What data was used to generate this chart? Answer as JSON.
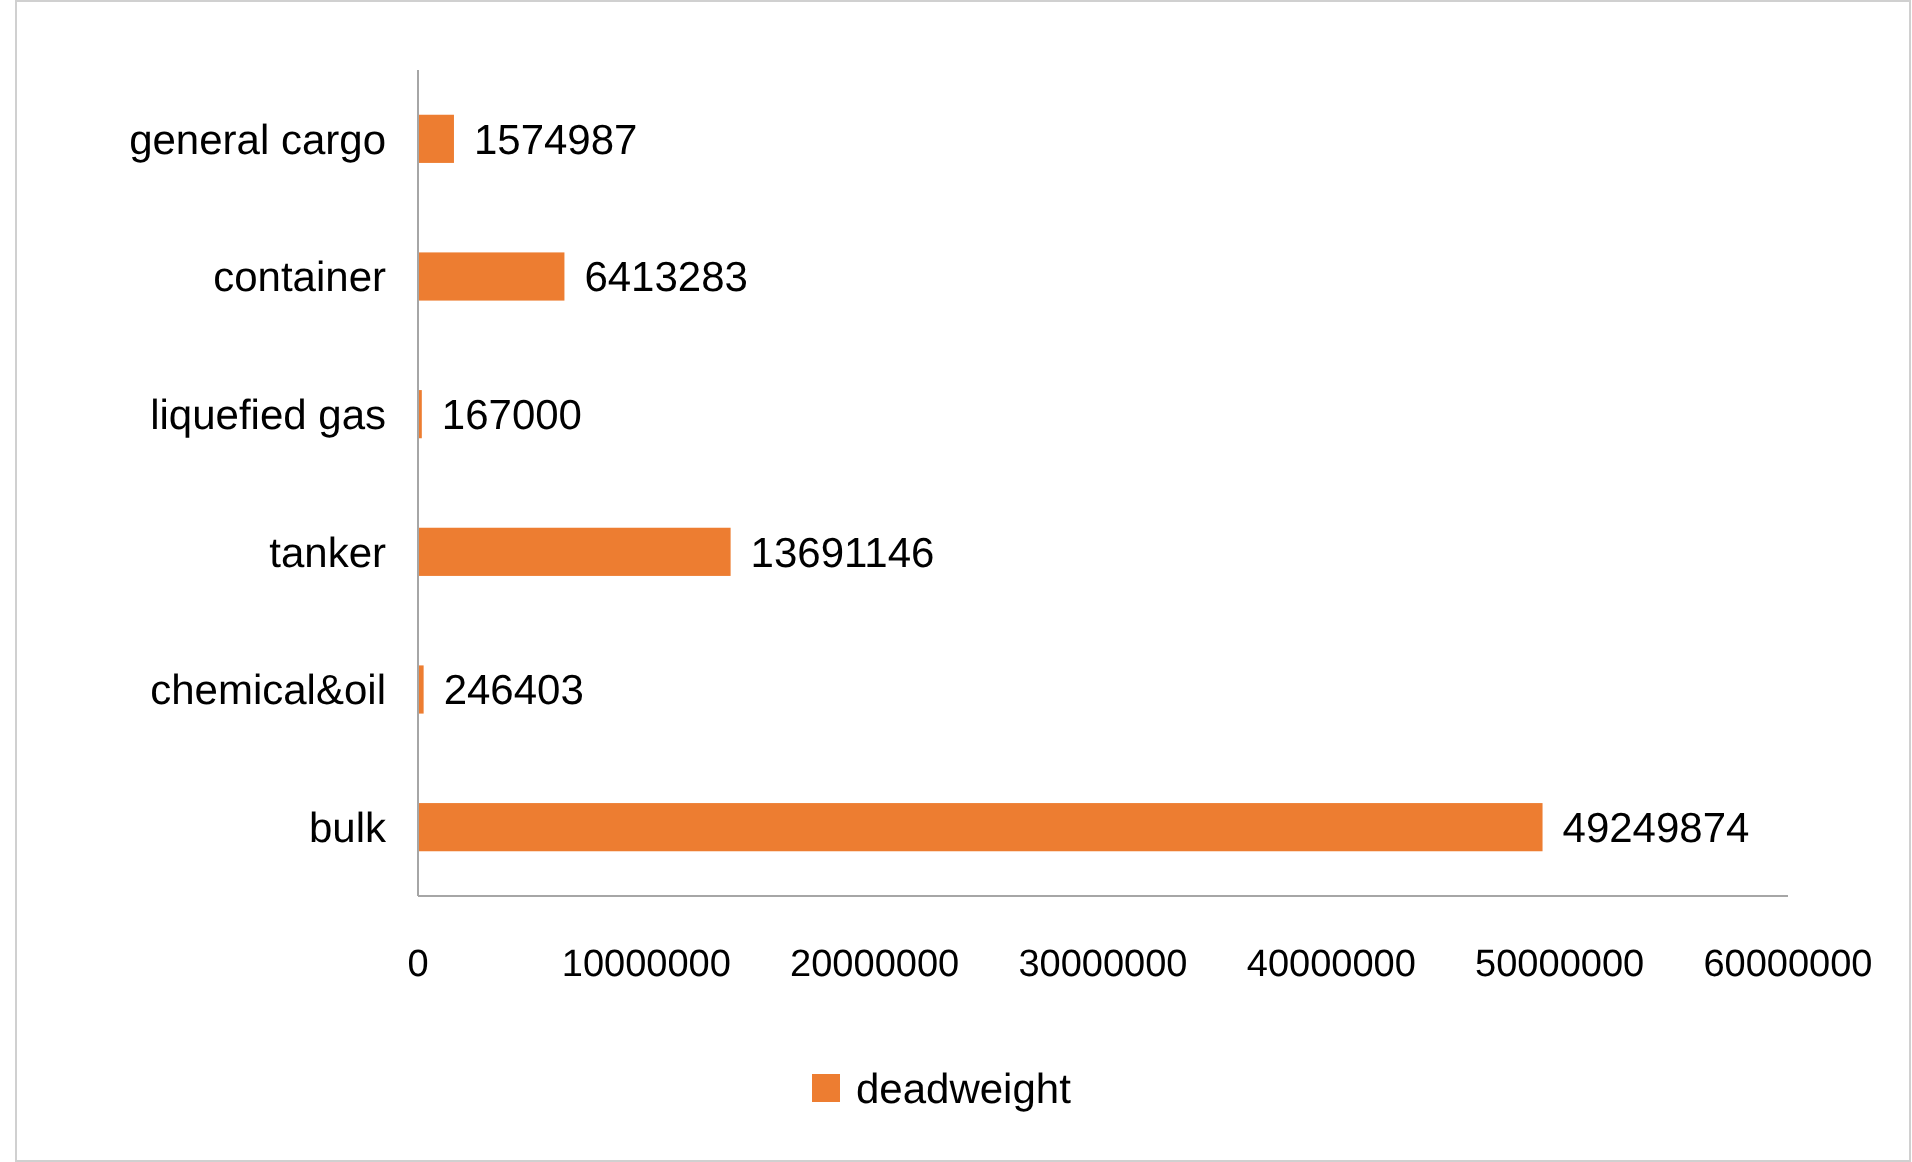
{
  "chart_data": {
    "type": "bar",
    "orientation": "horizontal",
    "categories": [
      "general cargo",
      "container",
      "liquefied gas",
      "tanker",
      "chemical&oil",
      "bulk"
    ],
    "series": [
      {
        "name": "deadweight",
        "color": "#ed7d31",
        "values": [
          1574987,
          6413283,
          167000,
          13691146,
          246403,
          49249874
        ]
      }
    ],
    "xlim": [
      0,
      60000000
    ],
    "xticks": [
      0,
      10000000,
      20000000,
      30000000,
      40000000,
      50000000,
      60000000
    ],
    "data_labels": true,
    "legend": "bottom",
    "grid": false
  }
}
